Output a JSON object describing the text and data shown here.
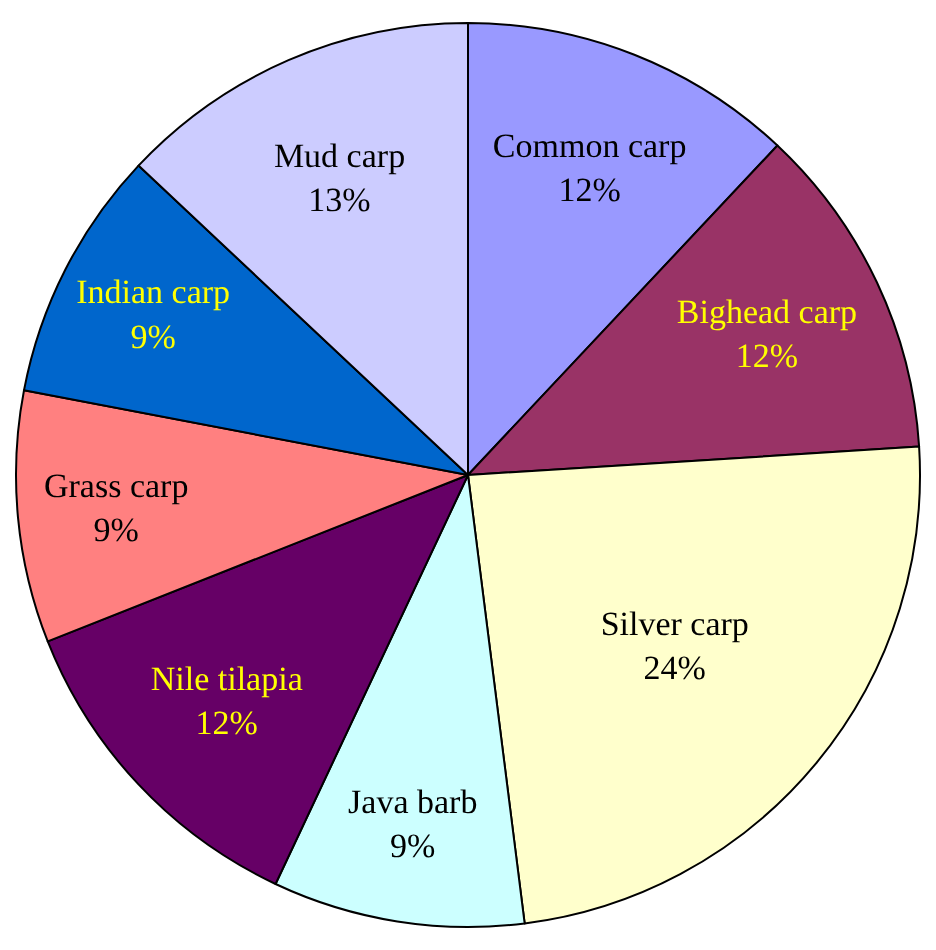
{
  "chart_data": {
    "type": "pie",
    "categories": [
      "Common carp",
      "Bighead carp",
      "Silver carp",
      "Java barb",
      "Nile tilapia",
      "Grass carp",
      "Indian carp",
      "Mud carp"
    ],
    "values": [
      12,
      12,
      24,
      9,
      12,
      9,
      9,
      13
    ],
    "value_labels": [
      "12%",
      "12%",
      "24%",
      "9%",
      "12%",
      "9%",
      "9%",
      "13%"
    ],
    "colors": [
      "#9999ff",
      "#993366",
      "#ffffcc",
      "#ccffff",
      "#660066",
      "#ff8080",
      "#0066cc",
      "#ccccff"
    ],
    "legend": false
  }
}
